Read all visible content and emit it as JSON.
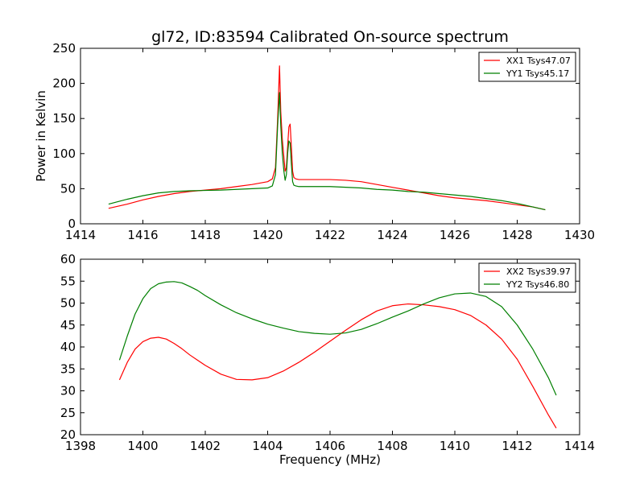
{
  "figure": {
    "title": "gl72, ID:83594 Calibrated On-source spectrum"
  },
  "chart_data": [
    {
      "type": "line",
      "title": "gl72, ID:83594 Calibrated On-source spectrum",
      "xlabel": "",
      "ylabel": "Power in Kelvin",
      "xlim": [
        1414,
        1430
      ],
      "ylim": [
        0,
        250
      ],
      "xticks": [
        "1414",
        "1416",
        "1418",
        "1420",
        "1422",
        "1424",
        "1426",
        "1428",
        "1430"
      ],
      "yticks": [
        "0",
        "50",
        "100",
        "150",
        "200",
        "250"
      ],
      "grid": false,
      "legend": "top-right",
      "series": [
        {
          "name": "XX1 Tsys47.07",
          "color": "#ff0000",
          "x": [
            1414.9,
            1415.5,
            1416.0,
            1416.5,
            1417.0,
            1417.5,
            1418.0,
            1418.5,
            1419.0,
            1419.5,
            1420.0,
            1420.15,
            1420.25,
            1420.32,
            1420.38,
            1420.42,
            1420.47,
            1420.52,
            1420.56,
            1420.6,
            1420.64,
            1420.68,
            1420.72,
            1420.76,
            1420.8,
            1420.84,
            1420.9,
            1421.0,
            1421.5,
            1422.0,
            1422.5,
            1423.0,
            1423.5,
            1424.0,
            1424.5,
            1425.0,
            1425.5,
            1426.0,
            1426.5,
            1427.0,
            1427.5,
            1428.0,
            1428.5,
            1428.9
          ],
          "y": [
            22,
            28,
            34,
            39,
            43,
            46,
            48,
            50,
            53,
            56,
            60,
            64,
            80,
            150,
            225,
            160,
            120,
            95,
            75,
            80,
            110,
            138,
            142,
            110,
            75,
            66,
            64,
            63,
            63,
            63,
            62,
            60,
            56,
            52,
            48,
            44,
            40,
            37,
            35,
            33,
            30,
            27,
            24,
            20
          ]
        },
        {
          "name": "YY1 Tsys45.17",
          "color": "#007f00",
          "x": [
            1414.9,
            1415.5,
            1416.0,
            1416.5,
            1417.0,
            1417.5,
            1418.0,
            1418.5,
            1419.0,
            1419.5,
            1420.0,
            1420.15,
            1420.25,
            1420.32,
            1420.38,
            1420.42,
            1420.47,
            1420.52,
            1420.56,
            1420.6,
            1420.64,
            1420.68,
            1420.72,
            1420.76,
            1420.8,
            1420.84,
            1420.9,
            1421.0,
            1421.5,
            1422.0,
            1422.5,
            1423.0,
            1423.5,
            1424.0,
            1424.5,
            1425.0,
            1425.5,
            1426.0,
            1426.5,
            1427.0,
            1427.5,
            1428.0,
            1428.5,
            1428.9
          ],
          "y": [
            28,
            35,
            40,
            44,
            46,
            47,
            47.5,
            48,
            49,
            50,
            51,
            54,
            70,
            140,
            187,
            140,
            100,
            75,
            62,
            70,
            100,
            118,
            115,
            85,
            60,
            55,
            54,
            53,
            53,
            53,
            52,
            51,
            49,
            48,
            46,
            45,
            43,
            41,
            39,
            36,
            33,
            29,
            24,
            20
          ]
        }
      ]
    },
    {
      "type": "line",
      "title": "",
      "xlabel": "Frequency (MHz)",
      "ylabel": "",
      "xlim": [
        1398,
        1414
      ],
      "ylim": [
        20,
        60
      ],
      "xticks": [
        "1398",
        "1400",
        "1402",
        "1404",
        "1406",
        "1408",
        "1410",
        "1412",
        "1414"
      ],
      "yticks": [
        "20",
        "25",
        "30",
        "35",
        "40",
        "45",
        "50",
        "55",
        "60"
      ],
      "grid": false,
      "legend": "top-right",
      "series": [
        {
          "name": "XX2 Tsys39.97",
          "color": "#ff0000",
          "x": [
            1399.25,
            1399.5,
            1399.75,
            1400.0,
            1400.25,
            1400.5,
            1400.75,
            1401.0,
            1401.25,
            1401.5,
            1401.75,
            1402.0,
            1402.5,
            1403.0,
            1403.5,
            1404.0,
            1404.5,
            1405.0,
            1405.5,
            1406.0,
            1406.5,
            1407.0,
            1407.5,
            1408.0,
            1408.5,
            1409.0,
            1409.5,
            1410.0,
            1410.5,
            1411.0,
            1411.5,
            1412.0,
            1412.5,
            1413.0,
            1413.25
          ],
          "y": [
            32.5,
            36.5,
            39.5,
            41.2,
            42.0,
            42.2,
            41.8,
            40.8,
            39.6,
            38.2,
            37.0,
            35.8,
            33.8,
            32.6,
            32.5,
            33.0,
            34.5,
            36.5,
            38.8,
            41.3,
            43.8,
            46.2,
            48.2,
            49.4,
            49.8,
            49.6,
            49.2,
            48.5,
            47.2,
            45.0,
            41.8,
            37.2,
            31.0,
            24.5,
            21.5
          ]
        },
        {
          "name": "YY2 Tsys46.80",
          "color": "#007f00",
          "x": [
            1399.25,
            1399.5,
            1399.75,
            1400.0,
            1400.25,
            1400.5,
            1400.75,
            1401.0,
            1401.25,
            1401.5,
            1401.75,
            1402.0,
            1402.5,
            1403.0,
            1403.5,
            1404.0,
            1404.5,
            1405.0,
            1405.5,
            1406.0,
            1406.5,
            1407.0,
            1407.5,
            1408.0,
            1408.5,
            1409.0,
            1409.5,
            1410.0,
            1410.5,
            1411.0,
            1411.5,
            1412.0,
            1412.5,
            1413.0,
            1413.25
          ],
          "y": [
            37.0,
            42.5,
            47.5,
            51.0,
            53.3,
            54.4,
            54.8,
            54.9,
            54.6,
            53.8,
            52.9,
            51.7,
            49.6,
            47.8,
            46.4,
            45.2,
            44.3,
            43.5,
            43.1,
            42.9,
            43.2,
            44.0,
            45.3,
            46.8,
            48.2,
            49.8,
            51.2,
            52.1,
            52.3,
            51.5,
            49.2,
            45.0,
            39.5,
            33.0,
            29.0
          ]
        }
      ]
    }
  ]
}
